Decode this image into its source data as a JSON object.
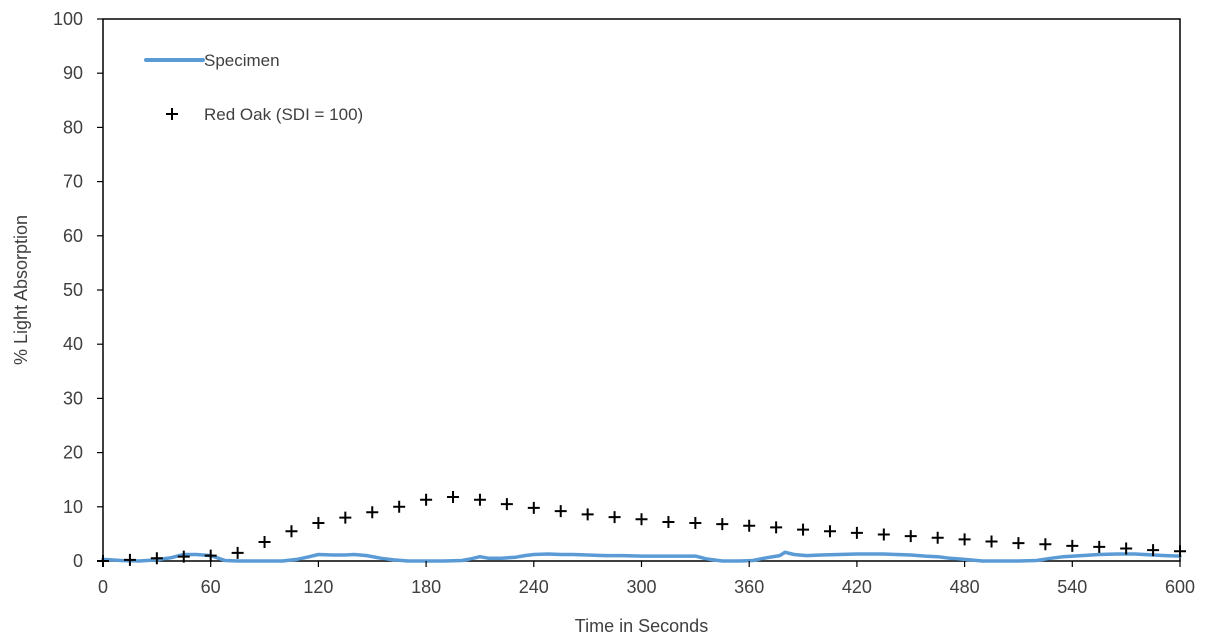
{
  "chart_data": {
    "type": "scatter",
    "title": "",
    "xlabel": "Time in Seconds",
    "ylabel": "% Light Absorption",
    "xlim": [
      0,
      600
    ],
    "ylim": [
      0,
      100
    ],
    "x_ticks": [
      "0",
      "60",
      "120",
      "180",
      "240",
      "300",
      "360",
      "420",
      "480",
      "540",
      "600"
    ],
    "y_ticks": [
      "0",
      "10",
      "20",
      "30",
      "40",
      "50",
      "60",
      "70",
      "80",
      "90",
      "100"
    ],
    "grid": false,
    "legend_position": "top-left",
    "series": [
      {
        "name": "Specimen",
        "kind": "line",
        "color": "#5b9bd5",
        "x": [
          0,
          10,
          20,
          30,
          38,
          45,
          52,
          60,
          68,
          75,
          90,
          100,
          108,
          115,
          120,
          128,
          135,
          140,
          147,
          155,
          162,
          170,
          180,
          190,
          200,
          205,
          210,
          215,
          222,
          230,
          235,
          240,
          248,
          255,
          262,
          270,
          280,
          290,
          300,
          308,
          315,
          322,
          330,
          336,
          345,
          355,
          362,
          370,
          377,
          380,
          385,
          392,
          400,
          410,
          420,
          428,
          435,
          442,
          450,
          458,
          465,
          472,
          480,
          490,
          500,
          510,
          520,
          528,
          535,
          545,
          555,
          565,
          575,
          585,
          592,
          600
        ],
        "y": [
          0.3,
          0.1,
          0,
          0.2,
          0.6,
          1.2,
          1.2,
          1.0,
          0.1,
          0,
          0,
          0,
          0.3,
          0.8,
          1.2,
          1.1,
          1.1,
          1.2,
          1.0,
          0.5,
          0.2,
          0,
          0,
          0,
          0.1,
          0.4,
          0.8,
          0.5,
          0.5,
          0.7,
          1.0,
          1.2,
          1.3,
          1.2,
          1.2,
          1.1,
          1.0,
          1.0,
          0.9,
          0.9,
          0.9,
          0.9,
          0.9,
          0.4,
          0,
          0,
          0.1,
          0.6,
          1.0,
          1.6,
          1.2,
          1.0,
          1.1,
          1.2,
          1.3,
          1.3,
          1.3,
          1.2,
          1.1,
          0.9,
          0.8,
          0.5,
          0.3,
          0,
          0,
          0,
          0.1,
          0.5,
          0.8,
          1.0,
          1.2,
          1.3,
          1.3,
          1.1,
          1.0,
          0.9
        ]
      },
      {
        "name": "Red Oak (SDI = 100)",
        "kind": "marker",
        "marker": "plus",
        "color": "#000000",
        "x": [
          0,
          15,
          30,
          45,
          60,
          75,
          90,
          105,
          120,
          135,
          150,
          165,
          180,
          195,
          210,
          225,
          240,
          255,
          270,
          285,
          300,
          315,
          330,
          345,
          360,
          375,
          390,
          405,
          420,
          435,
          450,
          465,
          480,
          495,
          510,
          525,
          540,
          555,
          570,
          585,
          600
        ],
        "y": [
          0,
          0.2,
          0.5,
          0.8,
          1.0,
          1.5,
          3.5,
          5.5,
          7.0,
          8.0,
          9.0,
          10.0,
          11.3,
          11.8,
          11.3,
          10.5,
          9.8,
          9.2,
          8.6,
          8.1,
          7.7,
          7.2,
          7.0,
          6.8,
          6.5,
          6.2,
          5.8,
          5.5,
          5.2,
          4.9,
          4.6,
          4.3,
          4.0,
          3.6,
          3.3,
          3.1,
          2.8,
          2.6,
          2.3,
          2.0,
          1.8
        ]
      }
    ]
  }
}
